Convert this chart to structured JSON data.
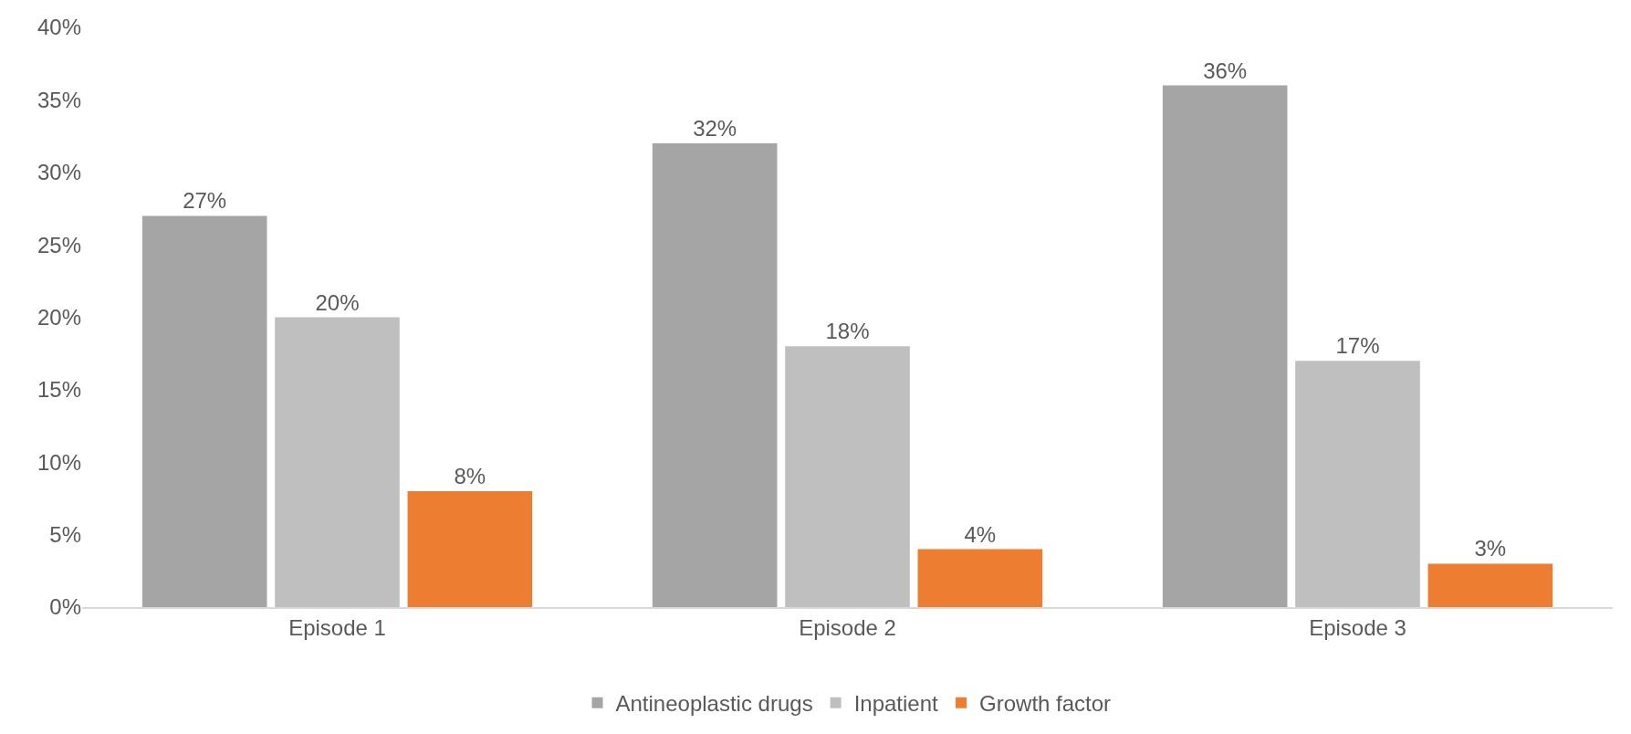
{
  "chart_data": {
    "type": "bar",
    "categories": [
      "Episode 1",
      "Episode 2",
      "Episode 3"
    ],
    "series": [
      {
        "name": "Antineoplastic drugs",
        "color": "#a5a5a5",
        "values": [
          27,
          32,
          36
        ],
        "value_labels": [
          "27%",
          "32%",
          "36%"
        ]
      },
      {
        "name": "Inpatient",
        "color": "#bfbfbf",
        "values": [
          20,
          18,
          17
        ],
        "value_labels": [
          "20%",
          "18%",
          "17%"
        ]
      },
      {
        "name": "Growth factor",
        "color": "#ed7d31",
        "values": [
          8,
          4,
          3
        ],
        "value_labels": [
          "8%",
          "4%",
          "3%"
        ]
      }
    ],
    "ylim": [
      0,
      40
    ],
    "yticks": [
      {
        "value": 0,
        "label": "0%"
      },
      {
        "value": 5,
        "label": "5%"
      },
      {
        "value": 10,
        "label": "10%"
      },
      {
        "value": 15,
        "label": "15%"
      },
      {
        "value": 20,
        "label": "20%"
      },
      {
        "value": 25,
        "label": "25%"
      },
      {
        "value": 30,
        "label": "30%"
      },
      {
        "value": 35,
        "label": "35%"
      },
      {
        "value": 40,
        "label": "40%"
      }
    ],
    "grid": false,
    "legend": "bottom"
  }
}
